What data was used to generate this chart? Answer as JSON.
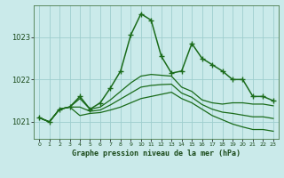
{
  "title": "Graphe pression niveau de la mer (hPa)",
  "background_color": "#caeaea",
  "grid_color": "#9ecece",
  "xlim": [
    -0.5,
    23.5
  ],
  "ylim": [
    1020.6,
    1023.75
  ],
  "yticks": [
    1021,
    1022,
    1023
  ],
  "xticks": [
    0,
    1,
    2,
    3,
    4,
    5,
    6,
    7,
    8,
    9,
    10,
    11,
    12,
    13,
    14,
    15,
    16,
    17,
    18,
    19,
    20,
    21,
    22,
    23
  ],
  "series": [
    {
      "x": [
        0,
        1,
        2,
        3,
        4,
        5,
        6,
        7,
        8,
        9,
        10,
        11,
        12,
        13,
        14,
        15,
        16,
        17,
        18,
        19,
        20,
        21,
        22,
        23
      ],
      "y": [
        1021.1,
        1021.0,
        1021.3,
        1021.35,
        1021.6,
        1021.3,
        1021.45,
        1021.8,
        1022.2,
        1023.05,
        1023.55,
        1023.4,
        1022.55,
        1022.15,
        1022.2,
        1022.85,
        1022.5,
        1022.35,
        1022.2,
        1022.0,
        1022.0,
        1021.6,
        1021.6,
        1021.5
      ],
      "color": "#1a6b1a",
      "linewidth": 1.1,
      "marker": "+",
      "markersize": 4,
      "markeredgewidth": 1.0
    },
    {
      "x": [
        0,
        1,
        2,
        3,
        4,
        5,
        6,
        7,
        8,
        9,
        10,
        11,
        12,
        13,
        14,
        15,
        16,
        17,
        18,
        19,
        20,
        21,
        22,
        23
      ],
      "y": [
        1021.1,
        1021.0,
        1021.3,
        1021.35,
        1021.15,
        1021.2,
        1021.22,
        1021.28,
        1021.35,
        1021.45,
        1021.55,
        1021.6,
        1021.65,
        1021.7,
        1021.55,
        1021.45,
        1021.3,
        1021.15,
        1021.05,
        1020.95,
        1020.88,
        1020.82,
        1020.82,
        1020.78
      ],
      "color": "#1a6b1a",
      "linewidth": 0.9,
      "marker": null,
      "markersize": 0
    },
    {
      "x": [
        0,
        1,
        2,
        3,
        4,
        5,
        6,
        7,
        8,
        9,
        10,
        11,
        12,
        13,
        14,
        15,
        16,
        17,
        18,
        19,
        20,
        21,
        22,
        23
      ],
      "y": [
        1021.1,
        1021.0,
        1021.3,
        1021.35,
        1021.55,
        1021.3,
        1021.35,
        1021.52,
        1021.72,
        1021.92,
        1022.08,
        1022.12,
        1022.1,
        1022.08,
        1021.82,
        1021.72,
        1021.52,
        1021.45,
        1021.42,
        1021.45,
        1021.45,
        1021.42,
        1021.42,
        1021.38
      ],
      "color": "#1a6b1a",
      "linewidth": 0.9,
      "marker": null,
      "markersize": 0
    },
    {
      "x": [
        0,
        1,
        2,
        3,
        4,
        5,
        6,
        7,
        8,
        9,
        10,
        11,
        12,
        13,
        14,
        15,
        16,
        17,
        18,
        19,
        20,
        21,
        22,
        23
      ],
      "y": [
        1021.1,
        1021.0,
        1021.3,
        1021.35,
        1021.35,
        1021.25,
        1021.28,
        1021.4,
        1021.54,
        1021.68,
        1021.82,
        1021.86,
        1021.88,
        1021.89,
        1021.68,
        1021.58,
        1021.41,
        1021.3,
        1021.23,
        1021.2,
        1021.16,
        1021.12,
        1021.12,
        1021.08
      ],
      "color": "#1a6b1a",
      "linewidth": 0.9,
      "marker": null,
      "markersize": 0
    }
  ]
}
